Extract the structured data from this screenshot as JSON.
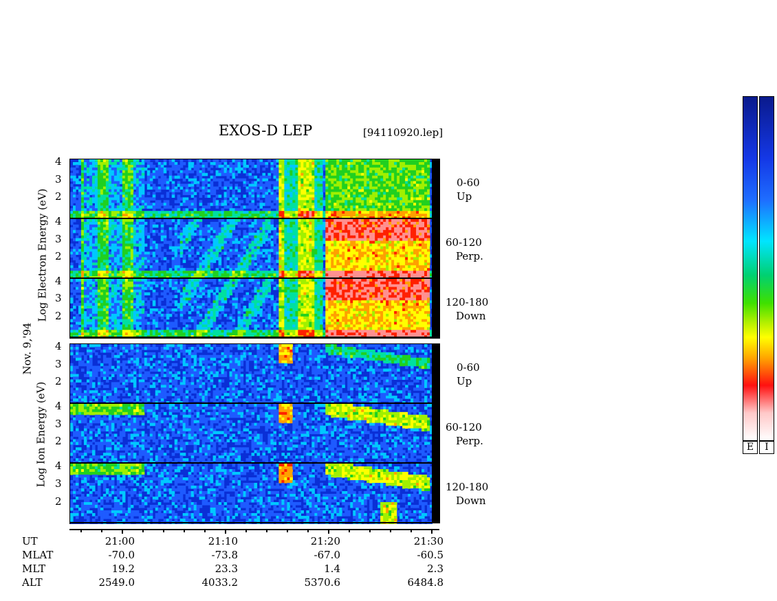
{
  "header": {
    "title": "EXOS-D LEP",
    "filename": "[94110920.lep]"
  },
  "side_labels": {
    "date": "Nov. 9,'94",
    "electron_axis": "Log   Electron   Energy  (eV)",
    "ion_axis": "Log   Ion   Energy  (eV)"
  },
  "colors": {
    "background_low": "#0a2fd6",
    "colorbar_stops": [
      "#0a1a8c",
      "#1e4dff",
      "#00e5ff",
      "#00d060",
      "#7fe000",
      "#ffff00",
      "#ffa500",
      "#ff1010",
      "#ffd0d0",
      "#ffffff"
    ]
  },
  "colorbars": [
    {
      "label": "E"
    },
    {
      "label": "I"
    }
  ],
  "chart_data": {
    "type": "heatmap",
    "title": "EXOS-D LEP",
    "ylabel_electron": "Log Electron Energy (eV)",
    "ylabel_ion": "Log Ion Energy (eV)",
    "x_axis": {
      "quantity": "UT",
      "ticks": [
        "21:00",
        "21:10",
        "21:20",
        "21:30"
      ],
      "range": [
        "20:55",
        "21:30"
      ]
    },
    "ephemeris": {
      "rows": [
        {
          "name": "UT",
          "values": [
            "21:00",
            "21:10",
            "21:20",
            "21:30"
          ]
        },
        {
          "name": "MLAT",
          "values": [
            "-70.0",
            "-73.8",
            "-67.0",
            "-60.5"
          ]
        },
        {
          "name": "MLT",
          "values": [
            "19.2",
            "23.3",
            "1.4",
            "2.3"
          ]
        },
        {
          "name": "ALT",
          "values": [
            "2549.0",
            "4033.2",
            "5370.6",
            "6484.8"
          ]
        }
      ]
    },
    "panels": [
      {
        "species": "electron",
        "pitch_angle": "0-60",
        "direction": "Up",
        "y_ticks": [
          "4",
          "3",
          "2"
        ],
        "ylim": [
          1,
          4
        ]
      },
      {
        "species": "electron",
        "pitch_angle": "60-120",
        "direction": "Perp.",
        "y_ticks": [
          "4",
          "3",
          "2"
        ],
        "ylim": [
          1,
          4
        ]
      },
      {
        "species": "electron",
        "pitch_angle": "120-180",
        "direction": "Down",
        "y_ticks": [
          "4",
          "3",
          "2"
        ],
        "ylim": [
          1,
          4
        ]
      },
      {
        "species": "ion",
        "pitch_angle": "0-60",
        "direction": "Up",
        "y_ticks": [
          "4",
          "3",
          "2"
        ],
        "ylim": [
          1,
          4
        ]
      },
      {
        "species": "ion",
        "pitch_angle": "60-120",
        "direction": "Perp.",
        "y_ticks": [
          "4",
          "3",
          "2"
        ],
        "ylim": [
          1,
          4
        ]
      },
      {
        "species": "ion",
        "pitch_angle": "120-180",
        "direction": "Down",
        "y_ticks": [
          "4",
          "3",
          "2"
        ],
        "ylim": [
          1,
          4
        ]
      }
    ]
  }
}
